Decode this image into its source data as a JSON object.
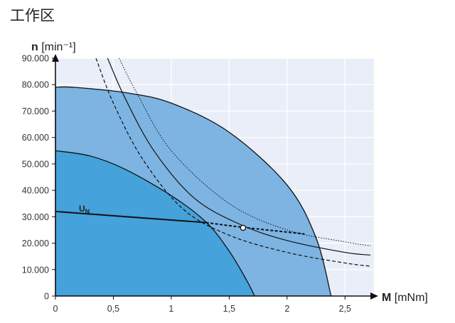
{
  "title": "工作区",
  "chart_data": {
    "type": "area",
    "xlabel": {
      "symbol": "M",
      "unit": "[mNm]"
    },
    "ylabel": {
      "symbol": "n",
      "unit": "[min⁻¹]"
    },
    "xlim": [
      0,
      2.75
    ],
    "ylim": [
      0,
      90000
    ],
    "x_ticks": [
      0,
      0.5,
      1,
      1.5,
      2,
      2.5
    ],
    "x_tick_labels": [
      "0",
      "0,5",
      "1",
      "1,5",
      "2",
      "2,5"
    ],
    "y_ticks": [
      0,
      10000,
      20000,
      30000,
      40000,
      50000,
      60000,
      70000,
      80000,
      90000
    ],
    "y_tick_labels": [
      "0",
      "10.000",
      "20.000",
      "30.000",
      "40.000",
      "50.000",
      "60.000",
      "70.000",
      "80.000",
      "90.000"
    ],
    "grid": true,
    "colors": {
      "plot_background": "#e9eef8",
      "grid": "#ffffff",
      "short_term_region": "#7db4e2",
      "continuous_region": "#45a2da",
      "line": "#111111"
    },
    "regions": [
      {
        "id": "short-term-operation",
        "points": [
          [
            0,
            79000
          ],
          [
            0.15,
            79000
          ],
          [
            0.6,
            77000
          ],
          [
            1.0,
            73000
          ],
          [
            1.5,
            62000
          ],
          [
            2.0,
            42000
          ],
          [
            2.25,
            22000
          ],
          [
            2.38,
            0
          ]
        ]
      },
      {
        "id": "continuous-operation",
        "points": [
          [
            0,
            55000
          ],
          [
            0.3,
            53000
          ],
          [
            0.6,
            48000
          ],
          [
            1.0,
            38000
          ],
          [
            1.3,
            28000
          ],
          [
            1.5,
            17000
          ],
          [
            1.65,
            6000
          ],
          [
            1.72,
            0
          ]
        ]
      }
    ],
    "series": [
      {
        "id": "thermal-limit-1",
        "style": "dotted",
        "points": [
          [
            0.55,
            90000
          ],
          [
            0.7,
            77000
          ],
          [
            1.0,
            55000
          ],
          [
            1.5,
            35000
          ],
          [
            2.0,
            25000
          ],
          [
            2.5,
            20500
          ],
          [
            2.72,
            19000
          ]
        ]
      },
      {
        "id": "thermal-limit-2",
        "style": "solid",
        "points": [
          [
            0.45,
            90000
          ],
          [
            0.6,
            75000
          ],
          [
            0.85,
            55000
          ],
          [
            1.2,
            37000
          ],
          [
            1.6,
            27000
          ],
          [
            2.0,
            21000
          ],
          [
            2.5,
            16500
          ],
          [
            2.72,
            15500
          ]
        ]
      },
      {
        "id": "thermal-limit-3",
        "style": "dashed",
        "points": [
          [
            0.35,
            90000
          ],
          [
            0.5,
            73000
          ],
          [
            0.75,
            52000
          ],
          [
            1.1,
            33000
          ],
          [
            1.5,
            23000
          ],
          [
            2.0,
            16500
          ],
          [
            2.5,
            12500
          ],
          [
            2.72,
            11300
          ]
        ]
      },
      {
        "id": "rated-voltage-line",
        "style": "solid-bold",
        "label": "U",
        "label_sub": "N",
        "points": [
          [
            0,
            32000
          ],
          [
            1.3,
            27800
          ]
        ]
      },
      {
        "id": "rated-voltage-line-extension",
        "style": "dashed-bold",
        "points": [
          [
            1.3,
            27800
          ],
          [
            1.62,
            26000
          ],
          [
            2.15,
            23500
          ]
        ]
      }
    ],
    "operating_point": {
      "x": 1.62,
      "y": 25800
    }
  }
}
